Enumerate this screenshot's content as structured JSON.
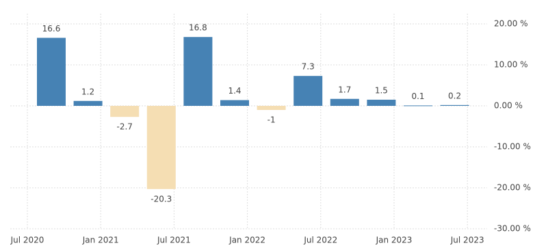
{
  "chart_data": {
    "type": "bar",
    "categories": [
      null,
      null,
      null,
      null,
      null,
      null,
      null,
      null,
      null,
      null,
      null,
      null
    ],
    "values": [
      16.6,
      1.2,
      -2.7,
      -20.3,
      16.8,
      1.4,
      -1,
      7.3,
      1.7,
      1.5,
      0.1,
      0.2
    ],
    "positive_color": "#4682b4",
    "negative_color": "#f5deb3",
    "x_tick_labels": [
      "Jul 2020",
      "Jan 2021",
      "Jul 2021",
      "Jan 2022",
      "Jul 2022",
      "Jan 2023",
      "Jul 2023"
    ],
    "ylim": [
      -30,
      22.5
    ],
    "yticks": [
      {
        "value": 20,
        "label": "20.00 %"
      },
      {
        "value": 10,
        "label": "10.00 %"
      },
      {
        "value": 0,
        "label": "0.00 %"
      },
      {
        "value": -10,
        "label": "-10.00 %"
      },
      {
        "value": -20,
        "label": "-20.00 %"
      },
      {
        "value": -30,
        "label": "-30.00 %"
      }
    ],
    "grid": true
  }
}
